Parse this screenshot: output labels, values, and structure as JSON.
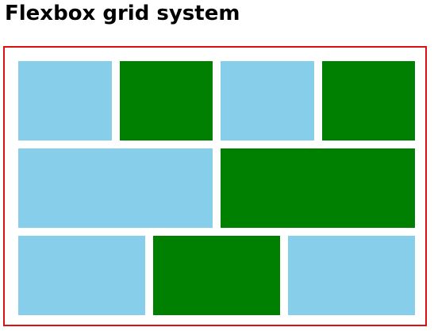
{
  "page": {
    "title": "Flexbox grid system"
  },
  "colors": {
    "frame_border": "#dd1111",
    "light_cell": "#87ceeb",
    "dark_cell": "#008000"
  },
  "grid": {
    "rows": [
      {
        "cells": [
          "light",
          "dark",
          "light",
          "dark"
        ]
      },
      {
        "cells": [
          "light",
          "dark"
        ]
      },
      {
        "cells": [
          "light",
          "dark",
          "light"
        ]
      }
    ]
  }
}
